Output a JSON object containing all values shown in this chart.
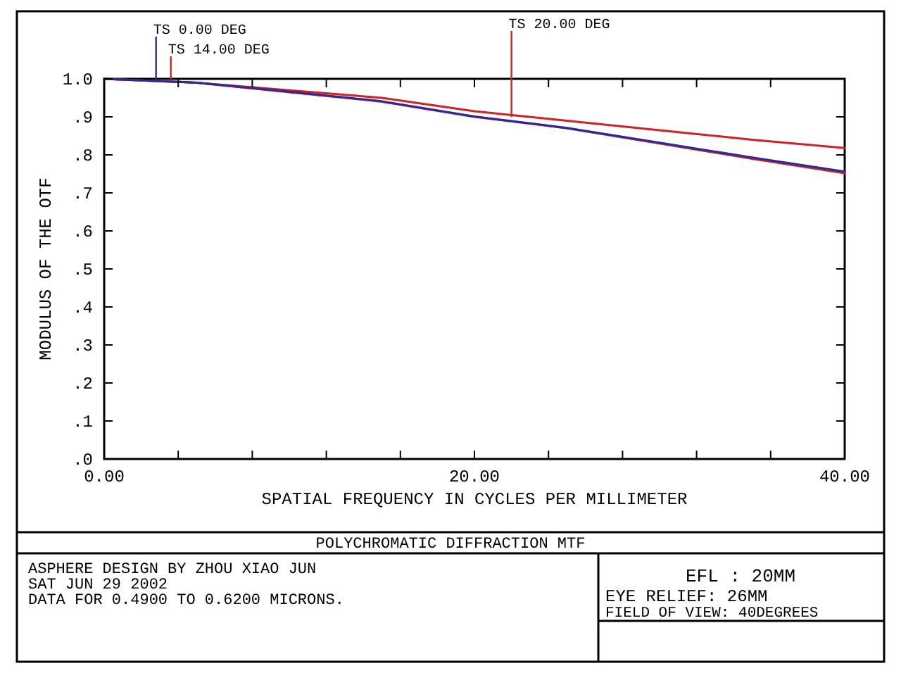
{
  "chart_data": {
    "type": "line",
    "xlabel": "SPATIAL FREQUENCY IN CYCLES PER MILLIMETER",
    "ylabel": "MODULUS OF THE OTF",
    "title": "POLYCHROMATIC DIFFRACTION MTF",
    "x": [
      0,
      5,
      10,
      15,
      20,
      25,
      30,
      35,
      40
    ],
    "series": [
      {
        "color": "#d42020",
        "values": [
          1.0,
          0.99,
          0.97,
          0.95,
          0.915,
          0.89,
          0.865,
          0.84,
          0.818
        ]
      },
      {
        "color": "#d42020",
        "values": [
          1.0,
          0.99,
          0.965,
          0.94,
          0.9,
          0.87,
          0.83,
          0.79,
          0.752
        ]
      },
      {
        "color": "#2a2a9a",
        "values": [
          1.0,
          0.99,
          0.966,
          0.941,
          0.901,
          0.871,
          0.832,
          0.793,
          0.756
        ]
      }
    ],
    "xlim": [
      0,
      40
    ],
    "ylim": [
      0,
      1
    ],
    "xticks": [
      {
        "value": 0,
        "label": "0.00"
      },
      {
        "value": 4,
        "label": null
      },
      {
        "value": 8,
        "label": null
      },
      {
        "value": 12,
        "label": null
      },
      {
        "value": 16,
        "label": null
      },
      {
        "value": 20,
        "label": "20.00"
      },
      {
        "value": 24,
        "label": null
      },
      {
        "value": 28,
        "label": null
      },
      {
        "value": 32,
        "label": null
      },
      {
        "value": 36,
        "label": null
      },
      {
        "value": 40,
        "label": "40.00"
      }
    ],
    "yticks": [
      {
        "value": 0,
        "label": ".0"
      },
      {
        "value": 0.1,
        "label": ".1"
      },
      {
        "value": 0.2,
        "label": ".2"
      },
      {
        "value": 0.3,
        "label": ".3"
      },
      {
        "value": 0.4,
        "label": ".4"
      },
      {
        "value": 0.5,
        "label": ".5"
      },
      {
        "value": 0.6,
        "label": ".6"
      },
      {
        "value": 0.7,
        "label": ".7"
      },
      {
        "value": 0.8,
        "label": ".8"
      },
      {
        "value": 0.9,
        "label": ".9"
      },
      {
        "value": 1,
        "label": "1.0"
      }
    ],
    "grid": false,
    "annotations": [
      {
        "text": "TS 0.00 DEG",
        "x": 2.8,
        "y": 1.0
      },
      {
        "text": "TS 14.00 DEG",
        "x": 3.6,
        "y": 1.0
      },
      {
        "text": "TS 20.00 DEG",
        "x": 22,
        "y": 0.9
      },
      "ASPHERE DESIGN BY ZHOU XIAO JUN",
      "SAT JUN 29 2002",
      "DATA FOR 0.4900 TO 0.6200 MICRONS.",
      "EFL : 20MM",
      "EYE RELIEF: 26MM",
      "FIELD OF VIEW: 40DEGREES"
    ]
  }
}
